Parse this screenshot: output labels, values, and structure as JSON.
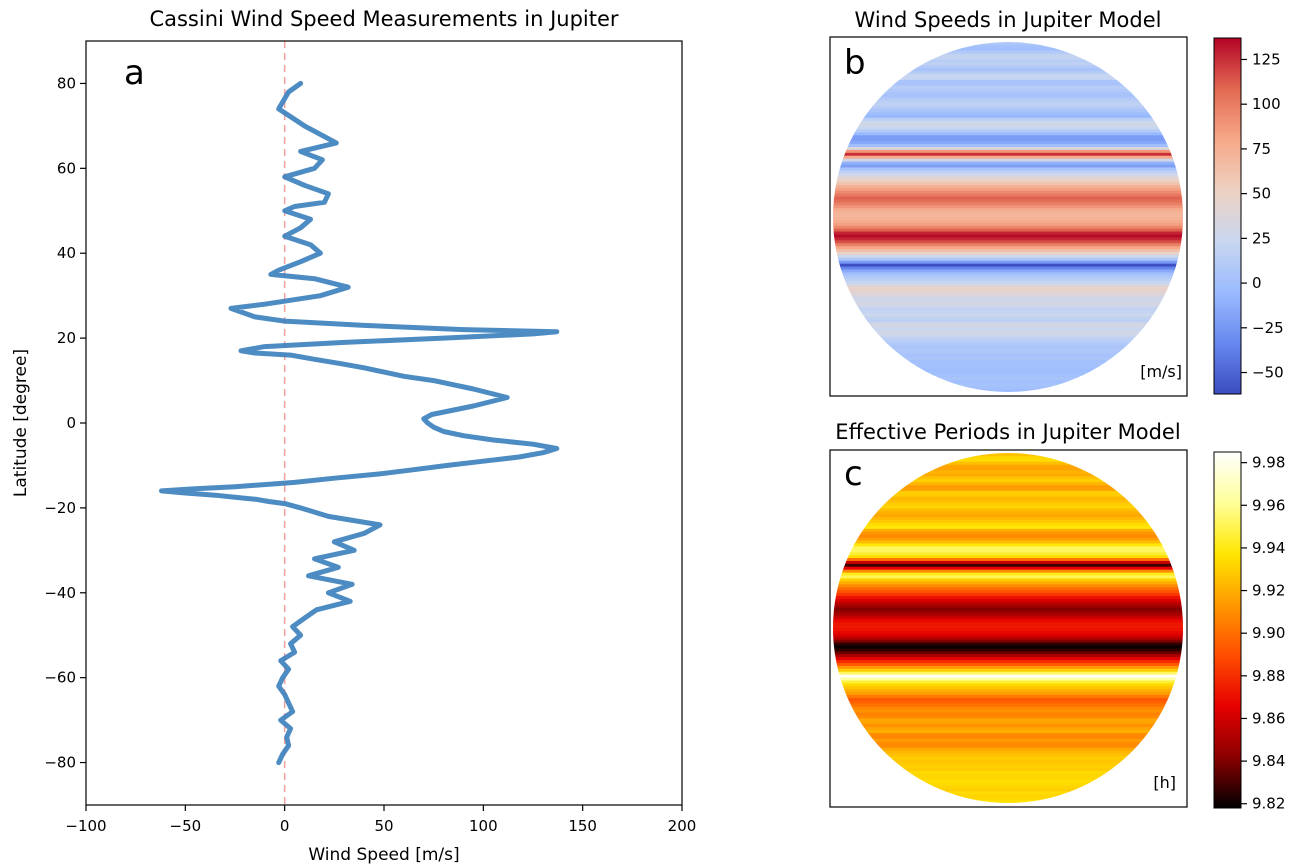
{
  "chart_data": [
    {
      "panel": "a",
      "type": "line",
      "title": "Cassini Wind Speed Measurements in Jupiter",
      "xlabel": "Wind Speed [m/s]",
      "ylabel": "Latitude [degree]",
      "xlim": [
        -100,
        200
      ],
      "ylim": [
        -90,
        90
      ],
      "xticks": [
        -100,
        -50,
        0,
        50,
        100,
        150,
        200
      ],
      "yticks": [
        -80,
        -60,
        -40,
        -20,
        0,
        20,
        40,
        60,
        80
      ],
      "series_color": "#3a7fbd",
      "zero_line_color": "#f4a0a0",
      "series": [
        {
          "wind_speed": [
            -3,
            -1,
            2,
            1,
            3,
            -2,
            4,
            2,
            0,
            -3,
            -1,
            2,
            -2,
            5,
            3,
            8,
            4,
            10,
            16,
            33,
            22,
            34,
            12,
            27,
            15,
            35,
            25,
            40,
            48,
            22,
            8,
            0,
            -8,
            -14,
            -25,
            -35,
            -50,
            -62,
            -45,
            -25,
            5,
            25,
            48,
            65,
            82,
            100,
            118,
            130,
            137,
            125,
            105,
            90,
            80,
            75,
            72,
            70,
            74,
            95,
            112,
            95,
            75,
            60,
            50,
            40,
            28,
            15,
            3,
            -15,
            -22,
            -10,
            30,
            80,
            125,
            137,
            90,
            40,
            0,
            -15,
            -27,
            -10,
            18,
            32,
            15,
            -7,
            -3,
            8,
            18,
            13,
            0,
            8,
            13,
            0,
            5,
            20,
            22,
            10,
            0,
            15,
            19,
            8,
            26,
            10,
            -3,
            2,
            8
          ],
          "latitude": [
            -80,
            -78,
            -76,
            -74,
            -72,
            -70,
            -68,
            -66,
            -64,
            -62,
            -60,
            -58,
            -56,
            -54,
            -52,
            -50,
            -48,
            -46,
            -44,
            -42,
            -40,
            -38,
            -36,
            -34,
            -32,
            -30,
            -28,
            -26,
            -24,
            -22,
            -20,
            -19,
            -18.5,
            -18,
            -17.5,
            -17,
            -16.5,
            -16,
            -15.5,
            -15,
            -14,
            -13,
            -12,
            -11,
            -10,
            -9,
            -8,
            -7,
            -6,
            -5,
            -4,
            -3,
            -2,
            -1,
            0,
            1,
            2,
            4,
            6,
            8,
            10,
            11,
            12,
            13,
            14,
            15,
            16,
            16.5,
            17,
            18,
            19,
            20,
            21,
            21.5,
            22,
            23,
            24,
            25,
            27,
            28,
            30,
            32,
            34,
            35,
            36,
            38,
            40,
            42,
            44,
            46,
            48,
            50,
            51,
            52,
            54,
            56,
            58,
            60,
            62,
            64,
            66,
            70,
            74,
            78,
            80
          ]
        }
      ],
      "annotation": "a"
    },
    {
      "panel": "b",
      "type": "heatmap",
      "title": "Wind Speeds in Jupiter Model",
      "unit_label": "[m/s]",
      "annotation": "b",
      "colorbar": {
        "colormap": "coolwarm",
        "vmin": -62,
        "vmax": 137,
        "ticks": [
          125,
          100,
          75,
          50,
          25,
          0,
          -25,
          -50
        ],
        "stops": [
          "#3b4cc0",
          "#6788ee",
          "#9abbff",
          "#c9d7f0",
          "#edd1c2",
          "#f7a889",
          "#e26952",
          "#b40426"
        ]
      }
    },
    {
      "panel": "c",
      "type": "heatmap",
      "title": "Effective Periods in Jupiter Model",
      "unit_label": "[h]",
      "annotation": "c",
      "colorbar": {
        "colormap": "hot",
        "vmin": 9.818,
        "vmax": 9.985,
        "ticks": [
          "9.98",
          "9.96",
          "9.94",
          "9.92",
          "9.90",
          "9.88",
          "9.86",
          "9.84",
          "9.82"
        ],
        "stops": [
          "#000000",
          "#8b0000",
          "#e60000",
          "#ff4d00",
          "#ff9900",
          "#ffe600",
          "#ffff99",
          "#ffffff"
        ]
      }
    }
  ]
}
